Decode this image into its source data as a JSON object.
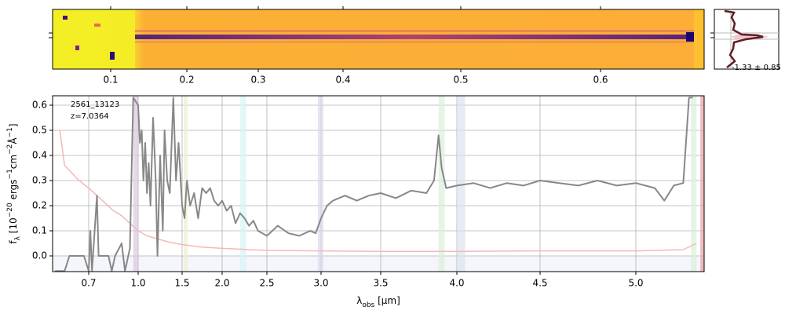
{
  "chart_data": {
    "type": "line",
    "annotations": [
      "2561_13123",
      "z=7.0364"
    ],
    "xlabel": [
      "λ",
      "obs",
      " [μm]"
    ],
    "ylabel": [
      "f",
      "λ",
      " [10",
      "−20",
      " ergs",
      "−1",
      "cm",
      "−2",
      "Å",
      "−1",
      "]"
    ],
    "xlim": [
      0.55,
      5.36
    ],
    "ylim": [
      -0.0625,
      0.6375
    ],
    "xticks": [
      0.7,
      {
        "value": 1,
        "label": "1.0"
      },
      1.5,
      {
        "value": 2,
        "label": "2.0"
      },
      2.5,
      {
        "value": 3,
        "label": "3.0"
      },
      3.5,
      {
        "value": 4,
        "label": "4.0"
      },
      4.5,
      {
        "value": 5,
        "label": "5.0"
      }
    ],
    "yticks": [
      {
        "value": 0,
        "label": "0.0"
      },
      0.1,
      0.2,
      0.3,
      0.4,
      0.5,
      0.6
    ],
    "grid": true,
    "bands": [
      {
        "x": [
          0.97,
          1.0
        ],
        "color": "#d8c8e0"
      },
      {
        "x": [
          1.52,
          1.57
        ],
        "color": "#eef0d0"
      },
      {
        "x": [
          2.2,
          2.27
        ],
        "color": "#d8f4f6"
      },
      {
        "x": [
          2.97,
          3.02
        ],
        "color": "#d8dcec"
      },
      {
        "x": [
          3.88,
          3.92
        ],
        "color": "#dcf0dc"
      },
      {
        "x": [
          4.0,
          4.05
        ],
        "color": "#dce4f0"
      },
      {
        "x": [
          5.29,
          5.32
        ],
        "color": "#dcf0dc"
      },
      {
        "x": [
          5.34,
          5.36
        ],
        "color": "#e8a0a8"
      }
    ],
    "series": [
      {
        "name": "error",
        "color": "#f4b8b8",
        "x": [
          0.58,
          0.6,
          0.62,
          0.66,
          0.7,
          0.75,
          0.8,
          0.85,
          0.9,
          0.95,
          1.0,
          1.1,
          1.2,
          1.35,
          1.5,
          1.75,
          2.0,
          2.5,
          3.0,
          3.5,
          4.0,
          4.5,
          5.0,
          5.25,
          5.32
        ],
        "values": [
          0.5,
          0.36,
          0.34,
          0.3,
          0.27,
          0.24,
          0.21,
          0.18,
          0.16,
          0.13,
          0.1,
          0.08,
          0.07,
          0.055,
          0.045,
          0.035,
          0.03,
          0.022,
          0.02,
          0.018,
          0.018,
          0.02,
          0.02,
          0.025,
          0.05
        ]
      },
      {
        "name": "flux",
        "color": "#888888",
        "x": [
          0.56,
          0.6,
          0.62,
          0.68,
          0.7,
          0.71,
          0.72,
          0.75,
          0.76,
          0.82,
          0.84,
          0.86,
          0.9,
          0.92,
          0.95,
          0.97,
          1.0,
          1.02,
          1.04,
          1.06,
          1.08,
          1.1,
          1.12,
          1.14,
          1.17,
          1.2,
          1.22,
          1.25,
          1.28,
          1.3,
          1.33,
          1.36,
          1.4,
          1.43,
          1.46,
          1.5,
          1.53,
          1.56,
          1.6,
          1.65,
          1.7,
          1.75,
          1.8,
          1.85,
          1.9,
          1.95,
          2.0,
          2.05,
          2.1,
          2.15,
          2.2,
          2.25,
          2.3,
          2.35,
          2.4,
          2.5,
          2.6,
          2.7,
          2.8,
          2.9,
          2.95,
          3.0,
          3.05,
          3.1,
          3.2,
          3.3,
          3.4,
          3.5,
          3.6,
          3.7,
          3.8,
          3.85,
          3.88,
          3.9,
          3.93,
          4.0,
          4.1,
          4.2,
          4.3,
          4.4,
          4.5,
          4.6,
          4.7,
          4.8,
          4.9,
          5.0,
          5.1,
          5.15,
          5.2,
          5.25,
          5.28,
          5.3
        ],
        "values": [
          -0.06,
          -0.06,
          0.0,
          0.0,
          -0.06,
          0.1,
          -0.06,
          0.24,
          0.0,
          0.0,
          -0.06,
          0.0,
          0.05,
          -0.06,
          0.03,
          0.63,
          0.6,
          0.45,
          0.5,
          0.3,
          0.45,
          0.25,
          0.37,
          0.2,
          0.55,
          0.3,
          0.0,
          0.4,
          0.1,
          0.5,
          0.3,
          0.25,
          0.63,
          0.3,
          0.45,
          0.2,
          0.15,
          0.3,
          0.2,
          0.25,
          0.15,
          0.27,
          0.25,
          0.27,
          0.22,
          0.2,
          0.22,
          0.18,
          0.2,
          0.13,
          0.17,
          0.15,
          0.12,
          0.14,
          0.1,
          0.08,
          0.12,
          0.09,
          0.08,
          0.1,
          0.09,
          0.15,
          0.2,
          0.22,
          0.24,
          0.22,
          0.24,
          0.25,
          0.23,
          0.26,
          0.25,
          0.3,
          0.48,
          0.35,
          0.27,
          0.28,
          0.29,
          0.27,
          0.29,
          0.28,
          0.3,
          0.29,
          0.28,
          0.3,
          0.28,
          0.29,
          0.27,
          0.22,
          0.28,
          0.29,
          0.63,
          0.63
        ]
      }
    ],
    "image_panel": {
      "xticks": [
        0.1,
        0.2,
        0.3,
        0.4,
        0.5,
        0.6
      ],
      "profile_label": "-1.33 ± 0.85"
    }
  }
}
